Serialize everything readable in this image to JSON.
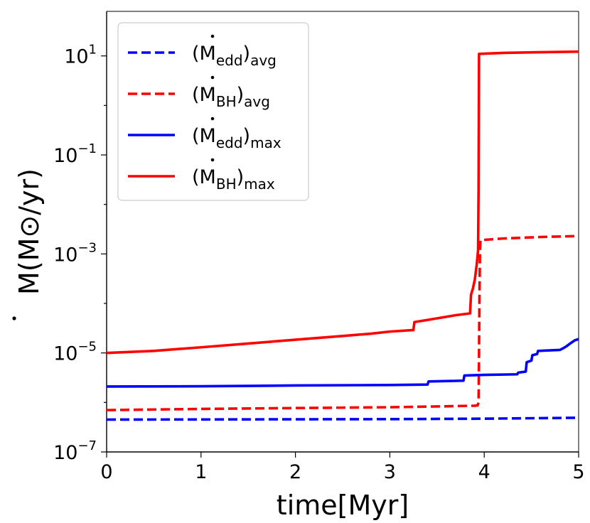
{
  "chart_data": {
    "type": "line",
    "xlabel": "time[Myr]",
    "ylabel": "M(M⊙/yr)",
    "yscale": "log",
    "xlim": [
      0,
      5
    ],
    "ylim_log10": [
      -7,
      1.9
    ],
    "xticks": [
      0,
      1,
      2,
      3,
      4,
      5
    ],
    "xtick_labels": [
      "0",
      "1",
      "2",
      "3",
      "4",
      "5"
    ],
    "yticks_log10": [
      -7,
      -5,
      -3,
      -1,
      1
    ],
    "ytick_labels": [
      {
        "base": "10",
        "exp": "−7"
      },
      {
        "base": "10",
        "exp": "−5"
      },
      {
        "base": "10",
        "exp": "−3"
      },
      {
        "base": "10",
        "exp": "−1"
      },
      {
        "base": "10",
        "exp": "1"
      }
    ],
    "legend": {
      "placement": "top-left",
      "entries": [
        {
          "series": "Medd_avg",
          "symbol": "M",
          "sub1": "edd",
          "sub2": "avg"
        },
        {
          "series": "MBH_avg",
          "symbol": "M",
          "sub1": "BH",
          "sub2": "avg"
        },
        {
          "series": "Medd_max",
          "symbol": "M",
          "sub1": "edd",
          "sub2": "max"
        },
        {
          "series": "MBH_max",
          "symbol": "M",
          "sub1": "BH",
          "sub2": "max"
        }
      ]
    },
    "series": [
      {
        "name": "Medd_avg",
        "label": "(Ṁedd)avg",
        "color": "#0000ff",
        "dash": "dashed",
        "points": [
          [
            0,
            4.5e-07
          ],
          [
            1.5,
            4.55e-07
          ],
          [
            3.0,
            4.6e-07
          ],
          [
            4.0,
            4.7e-07
          ],
          [
            5.0,
            4.9e-07
          ]
        ]
      },
      {
        "name": "MBH_avg",
        "label": "(ṀBH)avg",
        "color": "#ff0000",
        "dash": "dashed",
        "points": [
          [
            0,
            7e-07
          ],
          [
            1.0,
            7.4e-07
          ],
          [
            2.0,
            7.7e-07
          ],
          [
            3.0,
            8e-07
          ],
          [
            3.5,
            8.3e-07
          ],
          [
            3.9,
            8.6e-07
          ],
          [
            3.93,
            8.7e-07
          ],
          [
            3.94,
            1e-06
          ],
          [
            3.945,
            1e-05
          ],
          [
            3.95,
            0.00018
          ],
          [
            3.955,
            0.0012
          ],
          [
            3.96,
            0.0019
          ],
          [
            4.2,
            0.00205
          ],
          [
            4.6,
            0.0022
          ],
          [
            5.0,
            0.0023
          ]
        ]
      },
      {
        "name": "Medd_max",
        "label": "(Ṁedd)max",
        "color": "#0000ff",
        "dash": "solid",
        "points": [
          [
            0,
            2.1e-06
          ],
          [
            1.0,
            2.12e-06
          ],
          [
            2.0,
            2.2e-06
          ],
          [
            3.0,
            2.25e-06
          ],
          [
            3.4,
            2.3e-06
          ],
          [
            3.41,
            2.65e-06
          ],
          [
            3.78,
            2.75e-06
          ],
          [
            3.79,
            3.5e-06
          ],
          [
            4.0,
            3.6e-06
          ],
          [
            4.35,
            3.7e-06
          ],
          [
            4.36,
            4e-06
          ],
          [
            4.44,
            4.2e-06
          ],
          [
            4.45,
            6.5e-06
          ],
          [
            4.5,
            7e-06
          ],
          [
            4.51,
            9e-06
          ],
          [
            4.56,
            9.5e-06
          ],
          [
            4.57,
            1.1e-05
          ],
          [
            4.8,
            1.15e-05
          ],
          [
            4.84,
            1.25e-05
          ],
          [
            4.88,
            1.4e-05
          ],
          [
            4.92,
            1.6e-05
          ],
          [
            4.96,
            1.8e-05
          ],
          [
            5.0,
            1.9e-05
          ]
        ]
      },
      {
        "name": "MBH_max",
        "label": "(ṀBH)max",
        "color": "#ff0000",
        "dash": "solid",
        "points": [
          [
            0,
            1e-05
          ],
          [
            0.5,
            1.1e-05
          ],
          [
            1.0,
            1.3e-05
          ],
          [
            1.5,
            1.55e-05
          ],
          [
            2.0,
            1.85e-05
          ],
          [
            2.5,
            2.2e-05
          ],
          [
            2.8,
            2.45e-05
          ],
          [
            3.0,
            2.7e-05
          ],
          [
            3.25,
            2.9e-05
          ],
          [
            3.26,
            4.2e-05
          ],
          [
            3.5,
            5e-05
          ],
          [
            3.7,
            5.8e-05
          ],
          [
            3.85,
            6.3e-05
          ],
          [
            3.86,
            0.00015
          ],
          [
            3.88,
            0.0002
          ],
          [
            3.9,
            0.0003
          ],
          [
            3.92,
            0.0006
          ],
          [
            3.935,
            0.0012
          ],
          [
            3.94,
            0.02
          ],
          [
            3.945,
            11.0
          ],
          [
            4.2,
            11.5
          ],
          [
            4.6,
            11.9
          ],
          [
            5.0,
            12.2
          ]
        ]
      }
    ]
  }
}
